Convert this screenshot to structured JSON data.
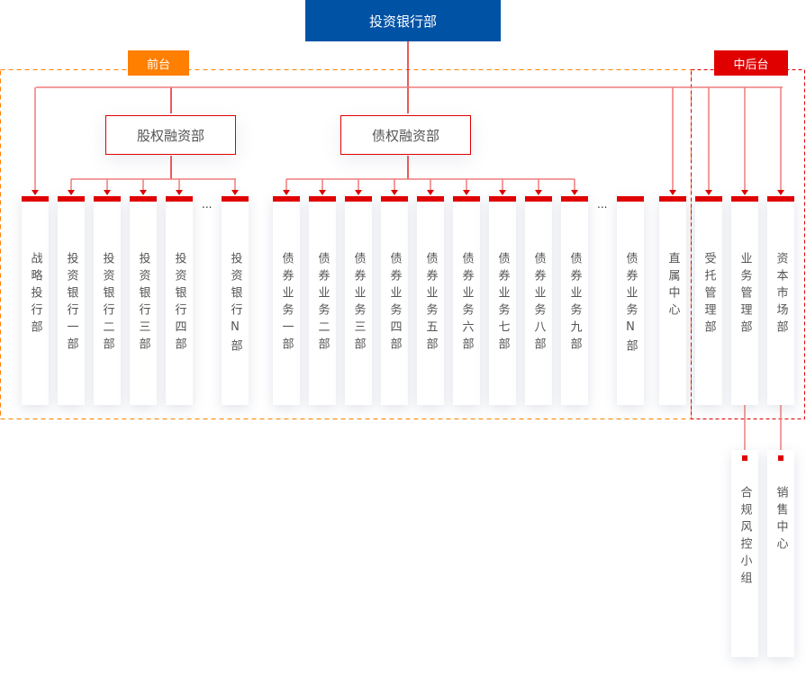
{
  "root": "投资银行部",
  "front_label": "前台",
  "back_label": "中后台",
  "equity": "股权融资部",
  "debt": "债权融资部",
  "ellipsis": "...",
  "colors": {
    "primary": "#0052a5",
    "accent": "#e00000",
    "front": "#ff7f00"
  },
  "front_units": [
    "战略投行部",
    "投资银行一部",
    "投资银行二部",
    "投资银行三部",
    "投资银行四部",
    "投资银行N部",
    "债券业务一部",
    "债券业务二部",
    "债券业务三部",
    "债券业务四部",
    "债券业务五部",
    "债券业务六部",
    "债券业务七部",
    "债券业务八部",
    "债券业务九部",
    "债券业务N部",
    "直属中心"
  ],
  "back_units": [
    "受托管理部",
    "业务管理部",
    "资本市场部"
  ],
  "sub_units": [
    "合规风控小组",
    "销售中心"
  ]
}
